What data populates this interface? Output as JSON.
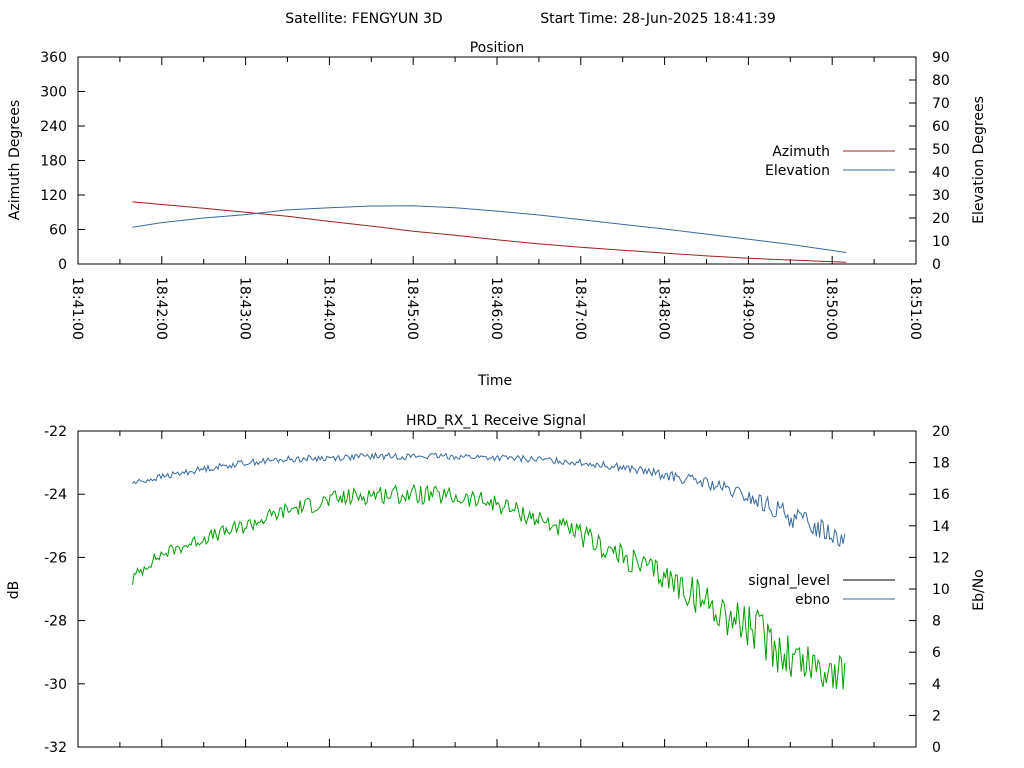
{
  "header": {
    "satellite_label": "Satellite: FENGYUN 3D",
    "start_time_label": "Start Time: 28-Jun-2025 18:41:39"
  },
  "chart_data": [
    {
      "type": "line",
      "title": "Position",
      "xlabel": "Time",
      "ylabel": "Azimuth Degrees",
      "y2label": "Elevation Degrees",
      "xlim": [
        "18:41:00",
        "18:51:00"
      ],
      "ylim": [
        0,
        360
      ],
      "y2lim": [
        0,
        90
      ],
      "x_ticks": [
        "18:41:00",
        "18:42:00",
        "18:43:00",
        "18:44:00",
        "18:45:00",
        "18:46:00",
        "18:47:00",
        "18:48:00",
        "18:49:00",
        "18:50:00",
        "18:51:00"
      ],
      "y_ticks": [
        0,
        60,
        120,
        180,
        240,
        300,
        360
      ],
      "y2_ticks": [
        0,
        10,
        20,
        30,
        40,
        50,
        60,
        70,
        80,
        90
      ],
      "legend": "right",
      "grid": false,
      "series": [
        {
          "name": "Azimuth",
          "axis": "y",
          "color": "#a02020",
          "x": [
            "18:41:39",
            "18:42:30",
            "18:43:00",
            "18:43:30",
            "18:44:00",
            "18:44:30",
            "18:45:00",
            "18:45:30",
            "18:46:00",
            "18:46:30",
            "18:47:00",
            "18:47:30",
            "18:48:00",
            "18:48:30",
            "18:49:00",
            "18:49:30",
            "18:50:10"
          ],
          "values": [
            108,
            97,
            90,
            83,
            74,
            66,
            57,
            50,
            42,
            35,
            29,
            24,
            19,
            14,
            10,
            7,
            3
          ]
        },
        {
          "name": "Elevation",
          "axis": "y2",
          "color": "#3a6aa0",
          "x": [
            "18:41:39",
            "18:42:00",
            "18:42:30",
            "18:43:00",
            "18:43:30",
            "18:44:00",
            "18:44:30",
            "18:45:00",
            "18:45:30",
            "18:46:00",
            "18:46:30",
            "18:47:00",
            "18:47:30",
            "18:48:00",
            "18:48:30",
            "18:49:00",
            "18:49:30",
            "18:50:10"
          ],
          "values": [
            16,
            18,
            20,
            21.5,
            23.5,
            24.5,
            25.2,
            25.3,
            24.5,
            23,
            21.3,
            19.3,
            17.2,
            15.2,
            13,
            10.8,
            8.5,
            5
          ]
        }
      ]
    },
    {
      "type": "line",
      "title": "HRD_RX_1 Receive Signal",
      "ylabel": "dB",
      "y2label": "Eb/No",
      "xlim": [
        "18:41:00",
        "18:51:00"
      ],
      "ylim": [
        -32,
        -22
      ],
      "y2lim": [
        0,
        20
      ],
      "y_ticks": [
        -32,
        -30,
        -28,
        -26,
        -24,
        -22
      ],
      "y2_ticks": [
        0,
        2,
        4,
        6,
        8,
        10,
        12,
        14,
        16,
        18,
        20
      ],
      "legend": "right",
      "grid": false,
      "series": [
        {
          "name": "signal_level",
          "axis": "y",
          "color": "#00a000",
          "x": [
            "18:41:39",
            "18:41:50",
            "18:42:00",
            "18:42:30",
            "18:43:00",
            "18:43:30",
            "18:44:00",
            "18:44:30",
            "18:45:00",
            "18:45:30",
            "18:46:00",
            "18:46:30",
            "18:47:00",
            "18:47:30",
            "18:48:00",
            "18:48:30",
            "18:49:00",
            "18:49:30",
            "18:50:10"
          ],
          "values": [
            -26.7,
            -26.2,
            -25.9,
            -25.4,
            -25.0,
            -24.5,
            -24.2,
            -24.0,
            -24.0,
            -24.1,
            -24.3,
            -24.8,
            -25.3,
            -26.0,
            -26.6,
            -27.4,
            -28.2,
            -29.1,
            -29.8
          ],
          "noise": [
            0.25,
            0.2,
            0.2,
            0.2,
            0.25,
            0.25,
            0.3,
            0.3,
            0.3,
            0.3,
            0.3,
            0.3,
            0.35,
            0.4,
            0.45,
            0.6,
            0.75,
            0.85,
            0.6
          ]
        },
        {
          "name": "ebno",
          "axis": "y2",
          "color": "#3a6aa0",
          "x": [
            "18:41:39",
            "18:42:00",
            "18:42:30",
            "18:43:00",
            "18:43:30",
            "18:44:00",
            "18:44:30",
            "18:45:00",
            "18:45:30",
            "18:46:00",
            "18:46:30",
            "18:47:00",
            "18:47:30",
            "18:48:00",
            "18:48:30",
            "18:49:00",
            "18:49:30",
            "18:50:10"
          ],
          "values": [
            16.7,
            17.1,
            17.6,
            18.0,
            18.2,
            18.3,
            18.4,
            18.4,
            18.4,
            18.3,
            18.2,
            18.0,
            17.7,
            17.2,
            16.7,
            15.8,
            14.6,
            13.2
          ],
          "noise": [
            0.2,
            0.2,
            0.2,
            0.2,
            0.2,
            0.2,
            0.2,
            0.2,
            0.2,
            0.2,
            0.2,
            0.2,
            0.25,
            0.3,
            0.4,
            0.5,
            0.7,
            0.7
          ]
        }
      ]
    }
  ]
}
